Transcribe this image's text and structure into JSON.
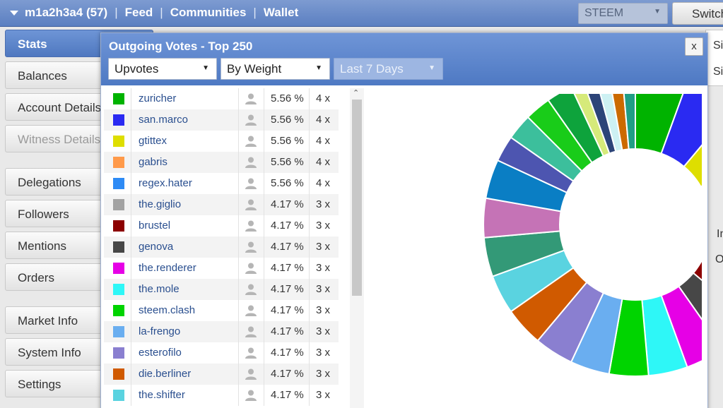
{
  "header": {
    "user": "m1a2h3a4 (57)",
    "links": [
      "Feed",
      "Communities",
      "Wallet"
    ],
    "coin": "STEEM",
    "switch_label": "Switch"
  },
  "sidebar": {
    "items": [
      {
        "label": "Stats",
        "state": "active"
      },
      {
        "label": "Balances",
        "state": "normal"
      },
      {
        "label": "Account Details",
        "state": "normal"
      },
      {
        "label": "Witness Details",
        "state": "disabled"
      },
      {
        "label": "Delegations",
        "state": "normal"
      },
      {
        "label": "Followers",
        "state": "normal"
      },
      {
        "label": "Mentions",
        "state": "normal"
      },
      {
        "label": "Orders",
        "state": "normal"
      },
      {
        "label": "Market Info",
        "state": "normal"
      },
      {
        "label": "System Info",
        "state": "normal"
      },
      {
        "label": "Settings",
        "state": "normal"
      }
    ]
  },
  "background_fragments": [
    "Si",
    "Si",
    "In",
    "O"
  ],
  "modal": {
    "title": "Outgoing Votes - Top 250",
    "close_label": "x",
    "filters": {
      "type": "Upvotes",
      "sort": "By Weight",
      "period": "Last 7 Days"
    },
    "user_icon": "user-silhouette-icon",
    "scroll_up_icon": "chevron-up-icon"
  },
  "votes": [
    {
      "name": "zuricher",
      "pct": "5.56 %",
      "count": "4 x",
      "color": "#00b300"
    },
    {
      "name": "san.marco",
      "pct": "5.56 %",
      "count": "4 x",
      "color": "#2a2af2"
    },
    {
      "name": "gtittex",
      "pct": "5.56 %",
      "count": "4 x",
      "color": "#dede00"
    },
    {
      "name": "gabris",
      "pct": "5.56 %",
      "count": "4 x",
      "color": "#ff9a4a"
    },
    {
      "name": "regex.hater",
      "pct": "5.56 %",
      "count": "4 x",
      "color": "#2e8bf5"
    },
    {
      "name": "the.giglio",
      "pct": "4.17 %",
      "count": "3 x",
      "color": "#a3a3a3"
    },
    {
      "name": "brustel",
      "pct": "4.17 %",
      "count": "3 x",
      "color": "#8c0000"
    },
    {
      "name": "genova",
      "pct": "4.17 %",
      "count": "3 x",
      "color": "#474747"
    },
    {
      "name": "the.renderer",
      "pct": "4.17 %",
      "count": "3 x",
      "color": "#e600e6"
    },
    {
      "name": "the.mole",
      "pct": "4.17 %",
      "count": "3 x",
      "color": "#2ef7f7"
    },
    {
      "name": "steem.clash",
      "pct": "4.17 %",
      "count": "3 x",
      "color": "#00d400"
    },
    {
      "name": "la-frengo",
      "pct": "4.17 %",
      "count": "3 x",
      "color": "#6aaef0"
    },
    {
      "name": "esterofilo",
      "pct": "4.17 %",
      "count": "3 x",
      "color": "#8a7fd0"
    },
    {
      "name": "die.berliner",
      "pct": "4.17 %",
      "count": "3 x",
      "color": "#d05a00"
    },
    {
      "name": "the.shifter",
      "pct": "4.17 %",
      "count": "3 x",
      "color": "#5ad3e0"
    }
  ],
  "extra_slices": [
    {
      "value": 4.17,
      "color": "#339977"
    },
    {
      "value": 4.17,
      "color": "#c573b6"
    },
    {
      "value": 4.17,
      "color": "#0a7ec4"
    },
    {
      "value": 2.78,
      "color": "#4d55b0"
    },
    {
      "value": 2.78,
      "color": "#3cbf9c"
    },
    {
      "value": 2.78,
      "color": "#19cc19"
    },
    {
      "value": 2.78,
      "color": "#0ea33c"
    },
    {
      "value": 1.39,
      "color": "#d6ea7a"
    },
    {
      "value": 1.39,
      "color": "#2c4478"
    },
    {
      "value": 1.39,
      "color": "#cdf1f3"
    },
    {
      "value": 1.39,
      "color": "#cc6a00"
    },
    {
      "value": 1.39,
      "color": "#209e86"
    }
  ]
}
